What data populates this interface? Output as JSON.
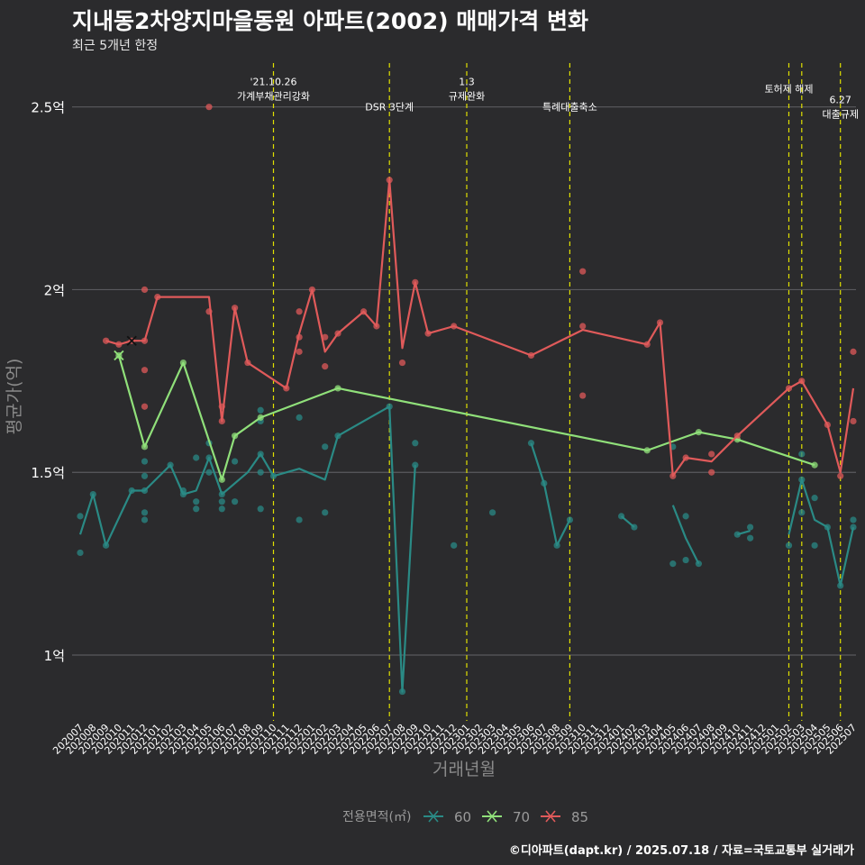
{
  "title": "지내동2차양지마을동원 아파트(2002) 매매가격 변화",
  "subtitle": "최근 5개년 한정",
  "caption": "©디아파트(dapt.kr) / 2025.07.18 / 자료=국토교통부 실거래가",
  "chart_data": {
    "type": "line",
    "xlabel": "거래년월",
    "ylabel": "평균가(억)",
    "ylim": [
      0.82,
      2.62
    ],
    "yticks": [
      {
        "value": 1.0,
        "label": "1억"
      },
      {
        "value": 1.5,
        "label": "1.5억"
      },
      {
        "value": 2.0,
        "label": "2억"
      },
      {
        "value": 2.5,
        "label": "2.5억"
      }
    ],
    "categories": [
      "202007",
      "202008",
      "202009",
      "202010",
      "202011",
      "202012",
      "202101",
      "202102",
      "202103",
      "202104",
      "202105",
      "202106",
      "202107",
      "202108",
      "202109",
      "202110",
      "202111",
      "202112",
      "202201",
      "202202",
      "202203",
      "202204",
      "202205",
      "202206",
      "202207",
      "202208",
      "202209",
      "202210",
      "202211",
      "202212",
      "202301",
      "202302",
      "202303",
      "202304",
      "202305",
      "202306",
      "202307",
      "202308",
      "202309",
      "202310",
      "202311",
      "202312",
      "202401",
      "202402",
      "202403",
      "202404",
      "202405",
      "202406",
      "202407",
      "202408",
      "202409",
      "202410",
      "202411",
      "202412",
      "202501",
      "202502",
      "202503",
      "202504",
      "202505",
      "202506",
      "202507"
    ],
    "grid": true,
    "legend": {
      "title": "전용면적(㎡)",
      "position": "bottom",
      "entries": [
        "60",
        "70",
        "85"
      ]
    },
    "colors": {
      "60": "#2a8a85",
      "70": "#90e07a",
      "85": "#e05a5a",
      "event": "#e0e000",
      "grid": "#5a5a5e",
      "background": "#2b2b2d"
    },
    "events": [
      {
        "x": "202110",
        "label": "'21.10.26\n가계부채관리강화",
        "label_y": 2.56
      },
      {
        "x": "202207",
        "label": "DSR 3단계",
        "label_y": 2.49
      },
      {
        "x": "202301",
        "label": "1.3\n규제완화",
        "label_y": 2.56
      },
      {
        "x": "202309",
        "label": "특례대출축소",
        "label_y": 2.49
      },
      {
        "x": "202502",
        "label": "토허제 해제",
        "label_y": 2.54
      },
      {
        "x": "202503",
        "label": "",
        "label_y": 2.54
      },
      {
        "x": "202506",
        "label": "6.27\n대출규제",
        "label_y": 2.51
      }
    ],
    "series": [
      {
        "name": "60",
        "points": [
          [
            "202007",
            1.33
          ],
          [
            "202008",
            1.44
          ],
          [
            "202009",
            1.3
          ],
          [
            "202011",
            1.45
          ],
          [
            "202012",
            1.45
          ],
          [
            "202102",
            1.52
          ],
          [
            "202103",
            1.44
          ],
          [
            "202104",
            1.45
          ],
          [
            "202105",
            1.54
          ],
          [
            "202106",
            1.44
          ],
          [
            "202108",
            1.5
          ],
          [
            "202109",
            1.55
          ],
          [
            "202110",
            1.49
          ],
          [
            "202112",
            1.51
          ],
          [
            "202202",
            1.48
          ],
          [
            "202203",
            1.6
          ],
          [
            "202207",
            1.68
          ],
          [
            "202208",
            0.9
          ],
          [
            "202209",
            1.52
          ]
        ],
        "points2": [
          [
            "202306",
            1.58
          ],
          [
            "202307",
            1.47
          ],
          [
            "202308",
            1.3
          ],
          [
            "202309",
            1.37
          ]
        ],
        "points3": [
          [
            "202401",
            1.38
          ],
          [
            "202402",
            1.35
          ]
        ],
        "points4": [
          [
            "202405",
            1.41
          ],
          [
            "202406",
            1.32
          ],
          [
            "202407",
            1.25
          ]
        ],
        "points5": [
          [
            "202410",
            1.33
          ],
          [
            "202411",
            1.34
          ]
        ],
        "points6": [
          [
            "202502",
            1.33
          ],
          [
            "202503",
            1.48
          ],
          [
            "202504",
            1.37
          ],
          [
            "202505",
            1.35
          ],
          [
            "202506",
            1.19
          ],
          [
            "202507",
            1.35
          ]
        ],
        "scatter": [
          [
            "202007",
            1.28
          ],
          [
            "202007",
            1.38
          ],
          [
            "202008",
            1.44
          ],
          [
            "202009",
            1.3
          ],
          [
            "202011",
            1.45
          ],
          [
            "202012",
            1.45
          ],
          [
            "202012",
            1.49
          ],
          [
            "202012",
            1.53
          ],
          [
            "202012",
            1.39
          ],
          [
            "202012",
            1.37
          ],
          [
            "202102",
            1.52
          ],
          [
            "202103",
            1.45
          ],
          [
            "202103",
            1.44
          ],
          [
            "202104",
            1.54
          ],
          [
            "202104",
            1.42
          ],
          [
            "202104",
            1.4
          ],
          [
            "202105",
            1.58
          ],
          [
            "202105",
            1.54
          ],
          [
            "202105",
            1.5
          ],
          [
            "202106",
            1.44
          ],
          [
            "202106",
            1.42
          ],
          [
            "202106",
            1.4
          ],
          [
            "202107",
            1.53
          ],
          [
            "202107",
            1.42
          ],
          [
            "202109",
            1.67
          ],
          [
            "202109",
            1.64
          ],
          [
            "202109",
            1.55
          ],
          [
            "202109",
            1.5
          ],
          [
            "202109",
            1.4
          ],
          [
            "202110",
            1.49
          ],
          [
            "202112",
            1.65
          ],
          [
            "202112",
            1.37
          ],
          [
            "202202",
            1.57
          ],
          [
            "202202",
            1.39
          ],
          [
            "202203",
            1.6
          ],
          [
            "202207",
            1.68
          ],
          [
            "202208",
            0.9
          ],
          [
            "202209",
            1.58
          ],
          [
            "202209",
            1.52
          ],
          [
            "202212",
            1.3
          ],
          [
            "202303",
            1.39
          ],
          [
            "202306",
            1.58
          ],
          [
            "202307",
            1.47
          ],
          [
            "202308",
            1.3
          ],
          [
            "202309",
            1.37
          ],
          [
            "202401",
            1.38
          ],
          [
            "202402",
            1.35
          ],
          [
            "202405",
            1.57
          ],
          [
            "202405",
            1.25
          ],
          [
            "202406",
            1.38
          ],
          [
            "202406",
            1.26
          ],
          [
            "202407",
            1.25
          ],
          [
            "202410",
            1.33
          ],
          [
            "202411",
            1.35
          ],
          [
            "202411",
            1.32
          ],
          [
            "202502",
            1.3
          ],
          [
            "202503",
            1.55
          ],
          [
            "202503",
            1.48
          ],
          [
            "202503",
            1.39
          ],
          [
            "202504",
            1.43
          ],
          [
            "202504",
            1.3
          ],
          [
            "202505",
            1.35
          ],
          [
            "202506",
            1.19
          ],
          [
            "202507",
            1.37
          ],
          [
            "202507",
            1.35
          ]
        ]
      },
      {
        "name": "70",
        "points": [
          [
            "202010",
            1.82
          ],
          [
            "202012",
            1.57
          ],
          [
            "202103",
            1.8
          ],
          [
            "202106",
            1.48
          ],
          [
            "202107",
            1.6
          ],
          [
            "202109",
            1.65
          ],
          [
            "202203",
            1.73
          ],
          [
            "202403",
            1.56
          ],
          [
            "202407",
            1.61
          ],
          [
            "202410",
            1.59
          ],
          [
            "202504",
            1.52
          ]
        ],
        "scatter": [
          [
            "202010",
            1.82
          ],
          [
            "202012",
            1.57
          ],
          [
            "202103",
            1.8
          ],
          [
            "202106",
            1.48
          ],
          [
            "202107",
            1.6
          ],
          [
            "202109",
            1.65
          ],
          [
            "202203",
            1.73
          ],
          [
            "202403",
            1.56
          ],
          [
            "202407",
            1.61
          ],
          [
            "202410",
            1.59
          ],
          [
            "202504",
            1.52
          ]
        ]
      },
      {
        "name": "85",
        "points": [
          [
            "202009",
            1.86
          ],
          [
            "202010",
            1.85
          ],
          [
            "202011",
            1.86
          ],
          [
            "202012",
            1.86
          ],
          [
            "202101",
            1.98
          ],
          [
            "202105",
            1.98
          ],
          [
            "202106",
            1.64
          ],
          [
            "202107",
            1.95
          ],
          [
            "202108",
            1.8
          ],
          [
            "202111",
            1.73
          ],
          [
            "202112",
            1.88
          ],
          [
            "202201",
            2.0
          ],
          [
            "202202",
            1.83
          ],
          [
            "202203",
            1.88
          ],
          [
            "202205",
            1.94
          ],
          [
            "202206",
            1.9
          ],
          [
            "202207",
            2.3
          ],
          [
            "202208",
            1.84
          ],
          [
            "202209",
            2.02
          ],
          [
            "202210",
            1.88
          ],
          [
            "202212",
            1.9
          ],
          [
            "202306",
            1.82
          ],
          [
            "202310",
            1.89
          ],
          [
            "202403",
            1.85
          ],
          [
            "202404",
            1.91
          ],
          [
            "202405",
            1.49
          ],
          [
            "202406",
            1.54
          ],
          [
            "202408",
            1.53
          ],
          [
            "202410",
            1.6
          ],
          [
            "202502",
            1.73
          ],
          [
            "202503",
            1.75
          ],
          [
            "202505",
            1.63
          ],
          [
            "202506",
            1.5
          ],
          [
            "202507",
            1.73
          ]
        ],
        "scatter": [
          [
            "202009",
            1.86
          ],
          [
            "202010",
            1.85
          ],
          [
            "202011",
            1.86
          ],
          [
            "202012",
            2.0
          ],
          [
            "202012",
            1.86
          ],
          [
            "202012",
            1.78
          ],
          [
            "202012",
            1.68
          ],
          [
            "202101",
            1.98
          ],
          [
            "202105",
            2.5
          ],
          [
            "202105",
            1.94
          ],
          [
            "202106",
            1.68
          ],
          [
            "202106",
            1.64
          ],
          [
            "202107",
            1.95
          ],
          [
            "202108",
            1.8
          ],
          [
            "202111",
            1.73
          ],
          [
            "202112",
            1.94
          ],
          [
            "202112",
            1.87
          ],
          [
            "202112",
            1.83
          ],
          [
            "202201",
            2.0
          ],
          [
            "202202",
            1.87
          ],
          [
            "202202",
            1.79
          ],
          [
            "202203",
            1.88
          ],
          [
            "202205",
            1.94
          ],
          [
            "202206",
            1.9
          ],
          [
            "202207",
            2.3
          ],
          [
            "202208",
            1.8
          ],
          [
            "202209",
            2.02
          ],
          [
            "202210",
            1.88
          ],
          [
            "202212",
            1.9
          ],
          [
            "202306",
            1.82
          ],
          [
            "202310",
            2.05
          ],
          [
            "202310",
            1.9
          ],
          [
            "202310",
            1.71
          ],
          [
            "202403",
            1.85
          ],
          [
            "202404",
            1.91
          ],
          [
            "202405",
            1.49
          ],
          [
            "202406",
            1.54
          ],
          [
            "202408",
            1.55
          ],
          [
            "202408",
            1.5
          ],
          [
            "202410",
            1.6
          ],
          [
            "202502",
            1.73
          ],
          [
            "202503",
            1.75
          ],
          [
            "202505",
            1.63
          ],
          [
            "202506",
            1.49
          ],
          [
            "202507",
            1.83
          ],
          [
            "202507",
            1.64
          ]
        ]
      }
    ]
  }
}
